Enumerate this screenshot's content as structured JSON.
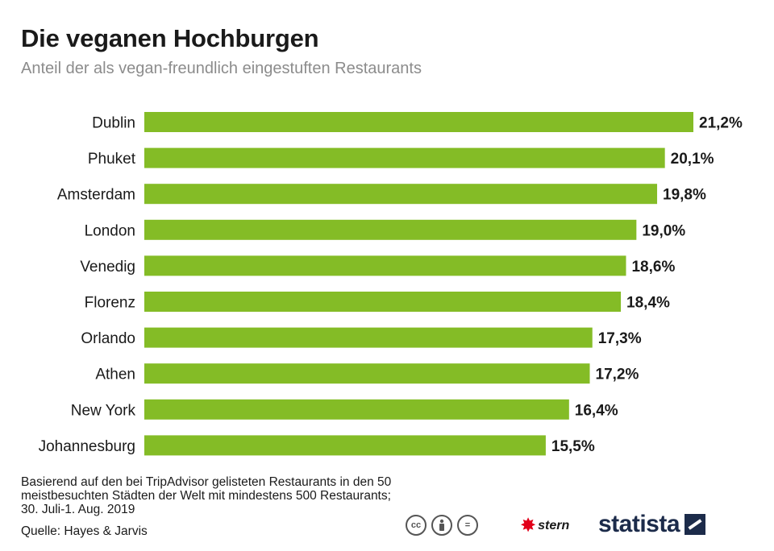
{
  "header": {
    "title": "Die veganen Hochburgen",
    "subtitle": "Anteil der als vegan-freundlich eingestuften Restaurants"
  },
  "chart_data": {
    "type": "bar",
    "orientation": "horizontal",
    "title": "Die veganen Hochburgen",
    "subtitle": "Anteil der als vegan-freundlich eingestuften Restaurants",
    "categories": [
      "Dublin",
      "Phuket",
      "Amsterdam",
      "London",
      "Venedig",
      "Florenz",
      "Orlando",
      "Athen",
      "New York",
      "Johannesburg"
    ],
    "values": [
      21.2,
      20.1,
      19.8,
      19.0,
      18.6,
      18.4,
      17.3,
      17.2,
      16.4,
      15.5
    ],
    "value_labels": [
      "21,2%",
      "20,1%",
      "19,8%",
      "19,0%",
      "18,6%",
      "18,4%",
      "17,3%",
      "17,2%",
      "16,4%",
      "15,5%"
    ],
    "unit": "%",
    "xlim": [
      0,
      21.2
    ],
    "grid": false,
    "bar_color": "#84bc26"
  },
  "footer": {
    "note": "Basierend auf den bei TripAdvisor gelisteten Restaurants in den 50 meistbesuchten Städten der Welt mit mindestens 500 Restaurants; 30. Juli-1. Aug. 2019",
    "source": "Quelle: Hayes & Jarvis",
    "license_icons": [
      "cc",
      "by",
      "="
    ],
    "stern_logo": "stern",
    "statista_logo": "statista"
  },
  "colors": {
    "bar": "#84bc26",
    "text": "#1a1a1a",
    "subtitle": "#8c8c8c",
    "brand_red": "#e2001a",
    "statista_navy": "#1c2b4a"
  }
}
